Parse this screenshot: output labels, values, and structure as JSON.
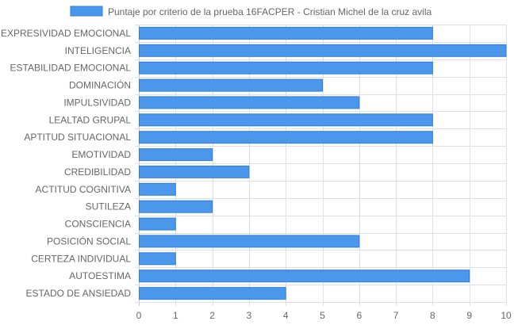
{
  "chart_data": {
    "type": "bar",
    "orientation": "horizontal",
    "categories": [
      "EXPRESIVIDAD EMOCIONAL",
      "INTELIGENCIA",
      "ESTABILIDAD EMOCIONAL",
      "DOMINACIÓN",
      "IMPULSIVIDAD",
      "LEALTAD GRUPAL",
      "APTITUD SITUACIONAL",
      "EMOTIVIDAD",
      "CREDIBILIDAD",
      "ACTITUD COGNITIVA",
      "SUTILEZA",
      "CONSCIENCIA",
      "POSICIÓN SOCIAL",
      "CERTEZA INDIVIDUAL",
      "AUTOESTIMA",
      "ESTADO DE ANSIEDAD"
    ],
    "series": [
      {
        "name": "Puntaje por criterio de la prueba 16FACPER - Cristian Michel de la cruz avila",
        "values": [
          8,
          10,
          8,
          5,
          6,
          8,
          8,
          2,
          3,
          1,
          2,
          1,
          6,
          1,
          9,
          4
        ]
      }
    ],
    "xlim": [
      0,
      10
    ],
    "xticks": [
      "0",
      "1",
      "2",
      "3",
      "4",
      "5",
      "6",
      "7",
      "8",
      "9",
      "10"
    ],
    "grid": true,
    "legend_position": "top",
    "colors": {
      "bar_fill": "#4a97ec",
      "bar_stroke": "#2f7fdc",
      "grid": "#e0e0e0",
      "text": "#666666"
    }
  }
}
